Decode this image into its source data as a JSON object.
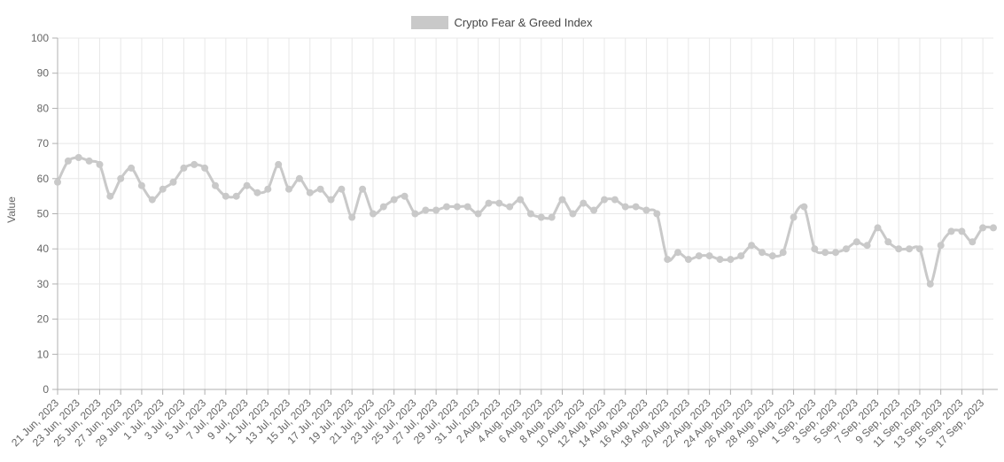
{
  "legend": {
    "label": "Crypto Fear & Greed Index"
  },
  "colors": {
    "series": "#c9c9c9",
    "point": "#c9c9c9",
    "grid": "#e8e8e8",
    "axis": "#b0b0b0",
    "tick_text": "#666666",
    "legend_text": "#444444",
    "background": "#ffffff"
  },
  "chart_data": {
    "type": "line",
    "title": "Crypto Fear & Greed Index",
    "ylabel": "Value",
    "ylim": [
      0,
      100
    ],
    "y_tick_step": 10,
    "x_tick_every": 2,
    "grid": true,
    "legend_position": "top-center",
    "x": [
      "21 Jun, 2023",
      "22 Jun, 2023",
      "23 Jun, 2023",
      "24 Jun, 2023",
      "25 Jun, 2023",
      "26 Jun, 2023",
      "27 Jun, 2023",
      "28 Jun, 2023",
      "29 Jun, 2023",
      "30 Jun, 2023",
      "1 Jul, 2023",
      "2 Jul, 2023",
      "3 Jul, 2023",
      "4 Jul, 2023",
      "5 Jul, 2023",
      "6 Jul, 2023",
      "7 Jul, 2023",
      "8 Jul, 2023",
      "9 Jul, 2023",
      "10 Jul, 2023",
      "11 Jul, 2023",
      "12 Jul, 2023",
      "13 Jul, 2023",
      "14 Jul, 2023",
      "15 Jul, 2023",
      "16 Jul, 2023",
      "17 Jul, 2023",
      "18 Jul, 2023",
      "19 Jul, 2023",
      "20 Jul, 2023",
      "21 Jul, 2023",
      "22 Jul, 2023",
      "23 Jul, 2023",
      "24 Jul, 2023",
      "25 Jul, 2023",
      "26 Jul, 2023",
      "27 Jul, 2023",
      "28 Jul, 2023",
      "29 Jul, 2023",
      "30 Jul, 2023",
      "31 Jul, 2023",
      "1 Aug, 2023",
      "2 Aug, 2023",
      "3 Aug, 2023",
      "4 Aug, 2023",
      "5 Aug, 2023",
      "6 Aug, 2023",
      "7 Aug, 2023",
      "8 Aug, 2023",
      "9 Aug, 2023",
      "10 Aug, 2023",
      "11 Aug, 2023",
      "12 Aug, 2023",
      "13 Aug, 2023",
      "14 Aug, 2023",
      "15 Aug, 2023",
      "16 Aug, 2023",
      "17 Aug, 2023",
      "18 Aug, 2023",
      "19 Aug, 2023",
      "20 Aug, 2023",
      "21 Aug, 2023",
      "22 Aug, 2023",
      "23 Aug, 2023",
      "24 Aug, 2023",
      "25 Aug, 2023",
      "26 Aug, 2023",
      "27 Aug, 2023",
      "28 Aug, 2023",
      "29 Aug, 2023",
      "30 Aug, 2023",
      "31 Aug, 2023",
      "1 Sep, 2023",
      "2 Sep, 2023",
      "3 Sep, 2023",
      "4 Sep, 2023",
      "5 Sep, 2023",
      "6 Sep, 2023",
      "7 Sep, 2023",
      "8 Sep, 2023",
      "9 Sep, 2023",
      "10 Sep, 2023",
      "11 Sep, 2023",
      "12 Sep, 2023",
      "13 Sep, 2023",
      "14 Sep, 2023",
      "15 Sep, 2023",
      "16 Sep, 2023",
      "17 Sep, 2023",
      "18 Sep, 2023"
    ],
    "series": [
      {
        "name": "Crypto Fear & Greed Index",
        "values": [
          59,
          65,
          66,
          65,
          64,
          55,
          60,
          63,
          58,
          54,
          57,
          59,
          63,
          64,
          63,
          58,
          55,
          55,
          58,
          56,
          57,
          64,
          57,
          60,
          56,
          57,
          54,
          57,
          49,
          57,
          50,
          52,
          54,
          55,
          50,
          51,
          51,
          52,
          52,
          52,
          50,
          53,
          53,
          52,
          54,
          50,
          49,
          49,
          54,
          50,
          53,
          51,
          54,
          54,
          52,
          52,
          51,
          50,
          37,
          39,
          37,
          38,
          38,
          37,
          37,
          38,
          41,
          39,
          38,
          39,
          49,
          52,
          40,
          39,
          39,
          40,
          42,
          41,
          46,
          42,
          40,
          40,
          40,
          30,
          41,
          45,
          45,
          42,
          46,
          46
        ]
      }
    ]
  }
}
